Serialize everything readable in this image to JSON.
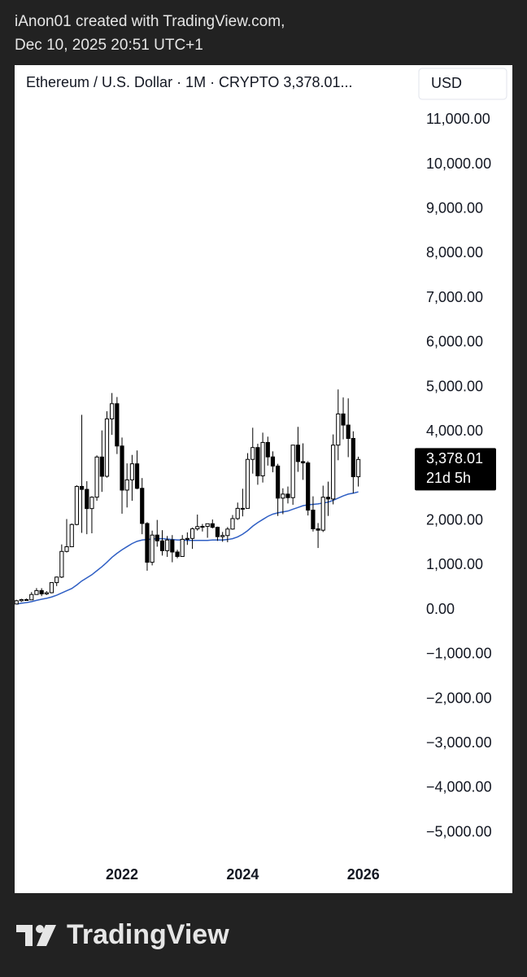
{
  "header": {
    "author_line": "iAnon01 created with TradingView.com,",
    "date_line": "Dec 10, 2025 20:51 UTC+1"
  },
  "footer": {
    "brand": "TradingView"
  },
  "chart_data": {
    "type": "candlestick",
    "title": "Ethereum / U.S. Dollar · 1M · CRYPTO  3,378.01...",
    "currency": "USD",
    "x": [
      2020.25,
      2020.333,
      2020.417,
      2020.5,
      2020.583,
      2020.667,
      2020.75,
      2020.833,
      2020.917,
      2021,
      2021.083,
      2021.167,
      2021.25,
      2021.333,
      2021.417,
      2021.5,
      2021.583,
      2021.667,
      2021.75,
      2021.833,
      2021.917,
      2022,
      2022.083,
      2022.167,
      2022.25,
      2022.333,
      2022.417,
      2022.5,
      2022.583,
      2022.667,
      2022.75,
      2022.833,
      2022.917,
      2023,
      2023.083,
      2023.167,
      2023.25,
      2023.333,
      2023.417,
      2023.5,
      2023.583,
      2023.667,
      2023.75,
      2023.833,
      2023.917,
      2024,
      2024.083,
      2024.167,
      2024.25,
      2024.333,
      2024.417,
      2024.5,
      2024.583,
      2024.667,
      2024.75,
      2024.833,
      2024.917,
      2025,
      2025.083,
      2025.167,
      2025.25,
      2025.333,
      2025.417,
      2025.5,
      2025.583,
      2025.667,
      2025.75,
      2025.833,
      2025.917
    ],
    "open": [
      133,
      206,
      231,
      226,
      346,
      434,
      360,
      386,
      613,
      737,
      1313,
      1418,
      1918,
      2773,
      2706,
      2275,
      2531,
      3433,
      3000,
      4288,
      4630,
      3680,
      2690,
      2920,
      3280,
      2730,
      1940,
      1070,
      1680,
      1550,
      1330,
      1570,
      1300,
      1200,
      1585,
      1605,
      1820,
      1870,
      1875,
      1935,
      1855,
      1645,
      1670,
      1815,
      2050,
      2280,
      2280,
      3380,
      3645,
      3010,
      3760,
      3435,
      3230,
      2510,
      2600,
      2520,
      3700,
      3330,
      3300,
      2240,
      1820,
      1790,
      2530,
      2490,
      3700,
      4400,
      4150,
      3850,
      2990
    ],
    "high": [
      227,
      250,
      256,
      400,
      490,
      488,
      420,
      620,
      750,
      1470,
      2040,
      1940,
      2797,
      4380,
      2890,
      2550,
      3470,
      4030,
      4460,
      4870,
      4780,
      3870,
      3290,
      3480,
      3580,
      2960,
      1970,
      1780,
      2020,
      1790,
      1660,
      1680,
      1350,
      1680,
      1740,
      1850,
      2140,
      1930,
      1930,
      2030,
      1870,
      1750,
      1860,
      2130,
      2410,
      2720,
      3520,
      4090,
      3730,
      3980,
      3890,
      3560,
      3280,
      2730,
      2770,
      3680,
      4110,
      3740,
      3340,
      2550,
      1950,
      2790,
      2880,
      3940,
      4950,
      4770,
      4750,
      4010,
      3440
    ],
    "low": [
      130,
      180,
      215,
      222,
      340,
      310,
      335,
      372,
      535,
      715,
      1290,
      1440,
      1900,
      1730,
      1700,
      1720,
      2450,
      2650,
      2970,
      3930,
      3500,
      2160,
      2300,
      2450,
      2710,
      1700,
      880,
      1000,
      1420,
      1220,
      1190,
      1070,
      1160,
      1190,
      1460,
      1370,
      1780,
      1760,
      1620,
      1830,
      1550,
      1530,
      1520,
      1800,
      2020,
      2100,
      2270,
      3060,
      2810,
      2860,
      3240,
      3090,
      2110,
      2150,
      2390,
      2360,
      3100,
      2920,
      2120,
      1760,
      1390,
      1750,
      2110,
      2370,
      3360,
      3830,
      3430,
      2620,
      2770
    ],
    "close": [
      206,
      231,
      226,
      346,
      434,
      360,
      386,
      613,
      737,
      1313,
      1418,
      1918,
      2773,
      2706,
      2275,
      2531,
      3433,
      3000,
      4288,
      4630,
      3680,
      2690,
      2920,
      3280,
      2730,
      1940,
      1070,
      1680,
      1550,
      1330,
      1570,
      1300,
      1200,
      1585,
      1605,
      1820,
      1870,
      1875,
      1935,
      1855,
      1645,
      1670,
      1815,
      2050,
      2280,
      2280,
      3380,
      3645,
      3010,
      3760,
      3435,
      3230,
      2510,
      2600,
      2520,
      3700,
      3330,
      3300,
      2240,
      1820,
      1790,
      2530,
      2490,
      3700,
      4400,
      4150,
      3850,
      2990,
      3378.01
    ],
    "moving_average": {
      "color": "#2f5fc4",
      "values": [
        130,
        150,
        165,
        185,
        215,
        240,
        260,
        290,
        330,
        380,
        430,
        480,
        560,
        650,
        720,
        790,
        880,
        970,
        1070,
        1180,
        1270,
        1350,
        1420,
        1490,
        1540,
        1570,
        1580,
        1590,
        1600,
        1600,
        1590,
        1580,
        1570,
        1570,
        1560,
        1560,
        1560,
        1560,
        1560,
        1570,
        1570,
        1570,
        1580,
        1600,
        1640,
        1700,
        1780,
        1880,
        1960,
        2030,
        2100,
        2150,
        2180,
        2200,
        2220,
        2260,
        2300,
        2340,
        2360,
        2370,
        2380,
        2400,
        2420,
        2460,
        2510,
        2560,
        2600,
        2620,
        2650
      ]
    },
    "up_color": "#ffffff",
    "down_color": "#000000",
    "wick_color": "#000000",
    "last_price": {
      "value": 3378.01,
      "label": "3,378.01",
      "countdown": "21d 5h"
    },
    "xlim": [
      2020.22,
      2026.88
    ],
    "xticks": [
      2022,
      2024,
      2026
    ],
    "ylim": [
      -5500,
      11500
    ],
    "yticks": [
      {
        "value": 11000,
        "label": "11,000.00"
      },
      {
        "value": 10000,
        "label": "10,000.00"
      },
      {
        "value": 9000,
        "label": "9,000.00"
      },
      {
        "value": 8000,
        "label": "8,000.00"
      },
      {
        "value": 7000,
        "label": "7,000.00"
      },
      {
        "value": 6000,
        "label": "6,000.00"
      },
      {
        "value": 5000,
        "label": "5,000.00"
      },
      {
        "value": 4000,
        "label": "4,000.00"
      },
      {
        "value": 2000,
        "label": "2,000.00"
      },
      {
        "value": 1000,
        "label": "1,000.00"
      },
      {
        "value": 0,
        "label": "0.00"
      },
      {
        "value": -1000,
        "label": "−1,000.00"
      },
      {
        "value": -2000,
        "label": "−2,000.00"
      },
      {
        "value": -3000,
        "label": "−3,000.00"
      },
      {
        "value": -4000,
        "label": "−4,000.00"
      },
      {
        "value": -5000,
        "label": "−5,000.00"
      }
    ],
    "grid": false
  }
}
